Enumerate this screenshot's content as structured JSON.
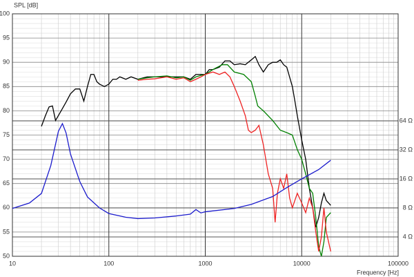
{
  "chart_data": {
    "type": "line",
    "ylabel": "SPL [dB]",
    "xlabel": "Frequency [Hz]",
    "xscale": "log",
    "y2scale": "log",
    "xlim": [
      10,
      100000
    ],
    "xticks": [
      10,
      100,
      1000,
      10000,
      100000
    ],
    "ylim": [
      50,
      100
    ],
    "yticks": [
      50,
      55,
      60,
      65,
      70,
      75,
      80,
      85,
      90,
      95,
      100
    ],
    "y2lim": [
      2.52,
      826
    ],
    "y2ticks": [
      {
        "value": 4,
        "label": "4 Ω"
      },
      {
        "value": 8,
        "label": "8 Ω"
      },
      {
        "value": 16,
        "label": "16 Ω"
      },
      {
        "value": 32,
        "label": "32 Ω"
      },
      {
        "value": 64,
        "label": "64 Ω"
      }
    ],
    "grid": true,
    "series": [
      {
        "color": "#000000",
        "x": [
          20,
          22,
          24,
          26,
          28,
          32,
          36,
          40,
          45,
          50,
          55,
          60,
          65,
          70,
          75,
          80,
          90,
          100,
          110,
          120,
          130,
          150,
          170,
          200,
          250,
          300,
          400,
          500,
          600,
          700,
          800,
          900,
          1000,
          1100,
          1200,
          1400,
          1600,
          1800,
          2000,
          2300,
          2600,
          3000,
          3300,
          3600,
          4000,
          4500,
          5000,
          5500,
          6000,
          6500,
          7000,
          8000,
          8500,
          9000,
          10000,
          11000,
          12000,
          13000,
          14000,
          15000,
          16000,
          17000,
          18000,
          20000
        ],
        "values": [
          76.8,
          79,
          80.8,
          81,
          78,
          80,
          81.8,
          83.5,
          84.5,
          84.5,
          82,
          85,
          87.5,
          87.5,
          86,
          85.5,
          85,
          85.5,
          86.5,
          86.5,
          87,
          86.5,
          87,
          86.5,
          87,
          87,
          87,
          87,
          87,
          86.5,
          87.5,
          87.5,
          87.5,
          88.5,
          88.5,
          89,
          90.3,
          90.3,
          89.5,
          89.7,
          89.5,
          90.5,
          91.2,
          89.5,
          88,
          89.5,
          90,
          90,
          90.5,
          89.5,
          89,
          85,
          82,
          79,
          74,
          70,
          64,
          60,
          56,
          58,
          61,
          63,
          61.5,
          60.5
        ]
      },
      {
        "color": "#008000",
        "x": [
          200,
          250,
          300,
          400,
          500,
          600,
          700,
          800,
          900,
          1000,
          1200,
          1500,
          1700,
          2000,
          2500,
          3000,
          3300,
          3500,
          4000,
          5000,
          6000,
          7000,
          8000,
          9000,
          10000,
          11000,
          12000,
          13000,
          14000,
          15000,
          16000,
          17000,
          18000,
          20000
        ],
        "values": [
          86.5,
          86.8,
          87,
          87.2,
          86.8,
          87,
          86.3,
          87,
          87.3,
          87.5,
          88.5,
          89.5,
          89.5,
          88,
          87.5,
          86,
          83,
          81,
          80,
          78,
          76,
          75.5,
          75,
          72,
          70,
          67,
          64,
          63,
          58,
          52,
          50,
          53,
          58,
          59
        ]
      },
      {
        "color": "#ee2222",
        "x": [
          200,
          250,
          300,
          400,
          500,
          600,
          700,
          800,
          900,
          1000,
          1200,
          1400,
          1600,
          1800,
          2000,
          2300,
          2600,
          2800,
          3000,
          3300,
          3600,
          4000,
          4500,
          5000,
          5300,
          5600,
          6000,
          6500,
          7000,
          7500,
          8000,
          9000,
          10000,
          11000,
          12000,
          13000,
          14000,
          15000,
          16000,
          17000,
          18000,
          20000
        ],
        "values": [
          86.3,
          86.5,
          86.6,
          87,
          86.5,
          86.8,
          86,
          86.5,
          87,
          87.5,
          88,
          87.5,
          88,
          87,
          85,
          82,
          79,
          76,
          75.5,
          76,
          77,
          73,
          67,
          64,
          57,
          63,
          66,
          64,
          67,
          62,
          60,
          63,
          61,
          59,
          62,
          60,
          55,
          51,
          54,
          60,
          55,
          51
        ]
      },
      {
        "color": "#1a1acc",
        "axis": "y2",
        "x": [
          10,
          15,
          20,
          25,
          30,
          33,
          36,
          40,
          50,
          60,
          80,
          100,
          150,
          200,
          300,
          500,
          700,
          800,
          900,
          1000,
          2000,
          3000,
          5000,
          7000,
          10000,
          15000,
          20000
        ],
        "values": [
          7.9,
          9,
          11.3,
          22,
          50,
          60,
          48,
          29,
          15,
          10.4,
          8,
          7,
          6.4,
          6.2,
          6.3,
          6.6,
          6.9,
          7.7,
          7.1,
          7.3,
          7.9,
          8.7,
          10.5,
          13,
          16,
          20,
          25
        ]
      }
    ]
  }
}
